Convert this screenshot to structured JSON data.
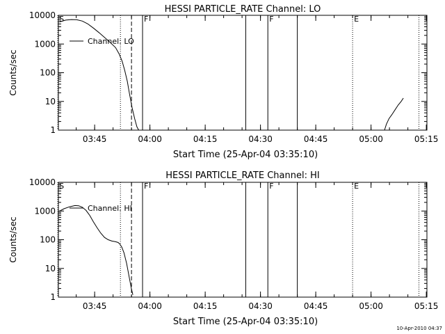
{
  "footer_timestamp": "10-Apr-2010 04:37",
  "chart_data": [
    {
      "type": "line",
      "title": "HESSI PARTICLE_RATE Channel: LO",
      "xlabel": "Start Time (25-Apr-04 03:35:10)",
      "ylabel": "Counts/sec",
      "yscale": "log",
      "xlim_minutes_after_start": [
        0,
        100
      ],
      "ylim": [
        1,
        10000
      ],
      "x_ticks": [
        "03:45",
        "04:00",
        "04:15",
        "04:30",
        "04:45",
        "05:00",
        "05:15"
      ],
      "y_ticks": [
        "1",
        "10",
        "100",
        "1000",
        "10000"
      ],
      "legend": "Channel: LO",
      "legend_position": "upper-left",
      "series": [
        {
          "name": "Channel: LO",
          "segments": [
            [
              [
                0.5,
                6000
              ],
              [
                2,
                6800
              ],
              [
                3.5,
                7100
              ],
              [
                5,
                7000
              ],
              [
                6.5,
                6300
              ],
              [
                8,
                5000
              ],
              [
                9.5,
                3600
              ],
              [
                11,
                2500
              ],
              [
                12.5,
                1700
              ],
              [
                14,
                1150
              ],
              [
                15.5,
                750
              ],
              [
                16.5,
                450
              ],
              [
                17.3,
                250
              ],
              [
                18,
                120
              ],
              [
                18.7,
                50
              ],
              [
                19.3,
                18
              ],
              [
                20,
                6
              ],
              [
                20.7,
                2.5
              ],
              [
                21.3,
                1.3
              ],
              [
                21.8,
                1
              ]
            ],
            [
              [
                88.5,
                1
              ],
              [
                89,
                1.6
              ],
              [
                89.7,
                2.5
              ],
              [
                90.5,
                3.5
              ],
              [
                91.3,
                5
              ],
              [
                92.2,
                7.5
              ],
              [
                93,
                10
              ],
              [
                93.6,
                13
              ]
            ]
          ]
        }
      ],
      "event_markers": [
        {
          "label": "S",
          "time": "03:35",
          "style": "dotted"
        },
        {
          "label": "",
          "time": "03:52",
          "style": "dotted"
        },
        {
          "label": "",
          "time": "03:55",
          "style": "dashed"
        },
        {
          "label": "F",
          "time": "03:58",
          "style": "solid"
        },
        {
          "label": "",
          "time": "04:26",
          "style": "solid"
        },
        {
          "label": "F",
          "time": "04:32",
          "style": "solid"
        },
        {
          "label": "",
          "time": "04:40",
          "style": "solid"
        },
        {
          "label": "E",
          "time": "04:55",
          "style": "dotted"
        },
        {
          "label": "",
          "time": "05:13",
          "style": "dotted"
        }
      ]
    },
    {
      "type": "line",
      "title": "HESSI PARTICLE_RATE Channel: HI",
      "xlabel": "Start Time (25-Apr-04 03:35:10)",
      "ylabel": "Counts/sec",
      "yscale": "log",
      "xlim_minutes_after_start": [
        0,
        100
      ],
      "ylim": [
        1,
        10000
      ],
      "x_ticks": [
        "03:45",
        "04:00",
        "04:15",
        "04:30",
        "04:45",
        "05:00",
        "05:15"
      ],
      "y_ticks": [
        "1",
        "10",
        "100",
        "1000",
        "10000"
      ],
      "legend": "Channel: HI",
      "legend_position": "upper-left",
      "series": [
        {
          "name": "Channel: HI",
          "segments": [
            [
              [
                0.3,
                1000
              ],
              [
                1.5,
                1200
              ],
              [
                3,
                1400
              ],
              [
                4.5,
                1550
              ],
              [
                5.5,
                1520
              ],
              [
                6.5,
                1350
              ],
              [
                7.5,
                1050
              ],
              [
                8.5,
                700
              ],
              [
                9.5,
                420
              ],
              [
                10.5,
                260
              ],
              [
                11.5,
                170
              ],
              [
                12.5,
                120
              ],
              [
                13.5,
                100
              ],
              [
                14.5,
                90
              ],
              [
                15.5,
                85
              ],
              [
                16.2,
                80
              ],
              [
                16.7,
                70
              ],
              [
                17.2,
                55
              ],
              [
                17.8,
                35
              ],
              [
                18.5,
                15
              ],
              [
                19.2,
                5
              ],
              [
                19.8,
                2
              ],
              [
                20.2,
                1.2
              ]
            ]
          ]
        }
      ],
      "event_markers": [
        {
          "label": "S",
          "time": "03:35",
          "style": "dotted"
        },
        {
          "label": "",
          "time": "03:52",
          "style": "dotted"
        },
        {
          "label": "",
          "time": "03:55",
          "style": "dashed"
        },
        {
          "label": "F",
          "time": "03:58",
          "style": "solid"
        },
        {
          "label": "",
          "time": "04:26",
          "style": "solid"
        },
        {
          "label": "F",
          "time": "04:32",
          "style": "solid"
        },
        {
          "label": "",
          "time": "04:40",
          "style": "solid"
        },
        {
          "label": "E",
          "time": "04:55",
          "style": "dotted"
        },
        {
          "label": "",
          "time": "05:13",
          "style": "dotted"
        }
      ]
    }
  ]
}
